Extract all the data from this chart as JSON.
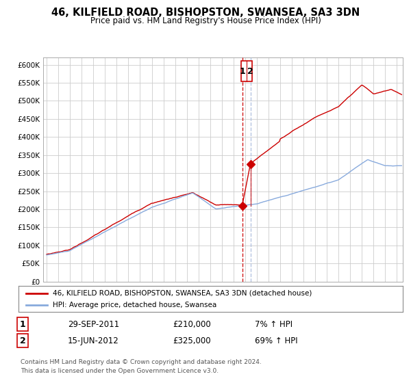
{
  "title": "46, KILFIELD ROAD, BISHOPSTON, SWANSEA, SA3 3DN",
  "subtitle": "Price paid vs. HM Land Registry's House Price Index (HPI)",
  "ylim": [
    0,
    620000
  ],
  "yticks": [
    0,
    50000,
    100000,
    150000,
    200000,
    250000,
    300000,
    350000,
    400000,
    450000,
    500000,
    550000,
    600000
  ],
  "ytick_labels": [
    "£0",
    "£50K",
    "£100K",
    "£150K",
    "£200K",
    "£250K",
    "£300K",
    "£350K",
    "£400K",
    "£450K",
    "£500K",
    "£550K",
    "£600K"
  ],
  "xlim_start": 1994.7,
  "xlim_end": 2025.5,
  "xticks": [
    1995,
    1996,
    1997,
    1998,
    1999,
    2000,
    2001,
    2002,
    2003,
    2004,
    2005,
    2006,
    2007,
    2008,
    2009,
    2010,
    2011,
    2012,
    2013,
    2014,
    2015,
    2016,
    2017,
    2018,
    2019,
    2020,
    2021,
    2022,
    2023,
    2024,
    2025
  ],
  "red_line_color": "#cc0000",
  "blue_line_color": "#88aadd",
  "dashed_red_color": "#cc0000",
  "dashed_blue_color": "#aabbdd",
  "marker_color": "#cc0000",
  "annotation1_label": "1",
  "annotation2_label": "2",
  "sale1_x": 2011.75,
  "sale1_y": 210000,
  "sale2_x": 2012.46,
  "sale2_y": 325000,
  "dashed_x1": 2011.75,
  "dashed_x2": 2012.46,
  "legend_red_label": "46, KILFIELD ROAD, BISHOPSTON, SWANSEA, SA3 3DN (detached house)",
  "legend_blue_label": "HPI: Average price, detached house, Swansea",
  "table_row1": [
    "1",
    "29-SEP-2011",
    "£210,000",
    "7% ↑ HPI"
  ],
  "table_row2": [
    "2",
    "15-JUN-2012",
    "£325,000",
    "69% ↑ HPI"
  ],
  "footer_text": "Contains HM Land Registry data © Crown copyright and database right 2024.\nThis data is licensed under the Open Government Licence v3.0.",
  "background_color": "#ffffff",
  "grid_color": "#cccccc"
}
